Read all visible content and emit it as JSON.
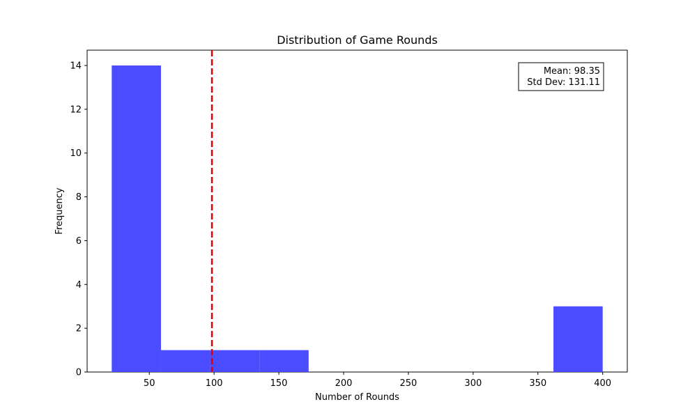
{
  "chart_data": {
    "type": "bar",
    "title": "Distribution of Game Rounds",
    "xlabel": "Number of Rounds",
    "ylabel": "Frequency",
    "bins": [
      {
        "start": 21,
        "end": 59,
        "count": 14
      },
      {
        "start": 59,
        "end": 97,
        "count": 1
      },
      {
        "start": 97,
        "end": 135,
        "count": 1
      },
      {
        "start": 135,
        "end": 173,
        "count": 1
      },
      {
        "start": 173,
        "end": 210,
        "count": 0
      },
      {
        "start": 210,
        "end": 248,
        "count": 0
      },
      {
        "start": 248,
        "end": 286,
        "count": 0
      },
      {
        "start": 286,
        "end": 324,
        "count": 0
      },
      {
        "start": 324,
        "end": 362,
        "count": 0
      },
      {
        "start": 362,
        "end": 400,
        "count": 3
      }
    ],
    "xlim": [
      2,
      419
    ],
    "ylim": [
      0,
      14.7
    ],
    "xticks": [
      50,
      100,
      150,
      200,
      250,
      300,
      350,
      400
    ],
    "yticks": [
      0,
      2,
      4,
      6,
      8,
      10,
      12,
      14
    ],
    "mean_line": 98.35,
    "annotation": {
      "line1": "Mean: 98.35",
      "line2": "Std Dev: 131.11"
    },
    "bar_color": "#4b4bff",
    "mean_line_color": "#e00000",
    "grid": false
  }
}
